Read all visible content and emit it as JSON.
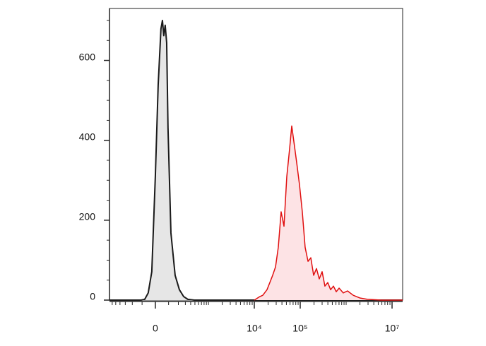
{
  "chart_data": {
    "type": "histogram-overlay",
    "xscale": {
      "type": "asinh",
      "linear_width": 140
    },
    "xlim": [
      -690,
      17000000
    ],
    "xticks": [
      0,
      {
        "value": 10000,
        "label": "10⁴"
      },
      {
        "value": 100000,
        "label": "10⁵"
      },
      {
        "value": 10000000,
        "label": "10⁷"
      }
    ],
    "xminor_ticks": [
      -600,
      -500,
      -400,
      -300,
      -200,
      -100,
      100,
      200,
      300,
      400,
      500,
      600,
      700,
      800,
      900,
      1000,
      2000,
      3000,
      4000,
      5000,
      6000,
      7000,
      8000,
      9000,
      20000,
      30000,
      40000,
      50000,
      60000,
      70000,
      80000,
      90000,
      200000,
      300000,
      400000,
      500000,
      600000,
      700000,
      800000,
      900000,
      1000000,
      2000000,
      3000000,
      4000000,
      5000000,
      6000000,
      7000000,
      8000000,
      9000000
    ],
    "ylim": [
      0,
      730
    ],
    "yticks": [
      0,
      200,
      400,
      600
    ],
    "yminor_ticks": [
      50,
      100,
      150,
      250,
      300,
      350,
      450,
      500,
      550,
      650,
      700
    ],
    "series": [
      {
        "color": "#1a1a1a",
        "fill": "#e6e6e6",
        "x": [
          -690,
          -108,
          -78,
          -51,
          -25,
          0,
          20,
          40,
          51,
          61,
          72,
          84,
          95,
          121,
          163,
          213,
          272,
          343,
          482,
          17000000
        ],
        "values": [
          0,
          0,
          2,
          18,
          71,
          309,
          538,
          679,
          700,
          662,
          688,
          644,
          432,
          168,
          62,
          26,
          9,
          2,
          0,
          0
        ]
      },
      {
        "color": "#e01010",
        "fill": "#fde3e5",
        "x": [
          10000,
          13300,
          15300,
          18900,
          21800,
          25100,
          29000,
          33300,
          38400,
          44300,
          51000,
          58800,
          65400,
          72700,
          83800,
          96600,
          111000,
          128000,
          148000,
          170000,
          196000,
          226000,
          260000,
          300000,
          345000,
          398000,
          459000,
          529000,
          609000,
          702000,
          867000,
          1070000,
          1430000,
          2030000,
          2900000,
          5870000,
          17000000
        ],
        "values": [
          0,
          9,
          12,
          26,
          44,
          62,
          83,
          132,
          221,
          185,
          309,
          379,
          436,
          397,
          344,
          288,
          221,
          132,
          97,
          106,
          62,
          79,
          53,
          71,
          35,
          44,
          26,
          35,
          21,
          30,
          18,
          23,
          12,
          5,
          2,
          0,
          0
        ]
      }
    ]
  }
}
